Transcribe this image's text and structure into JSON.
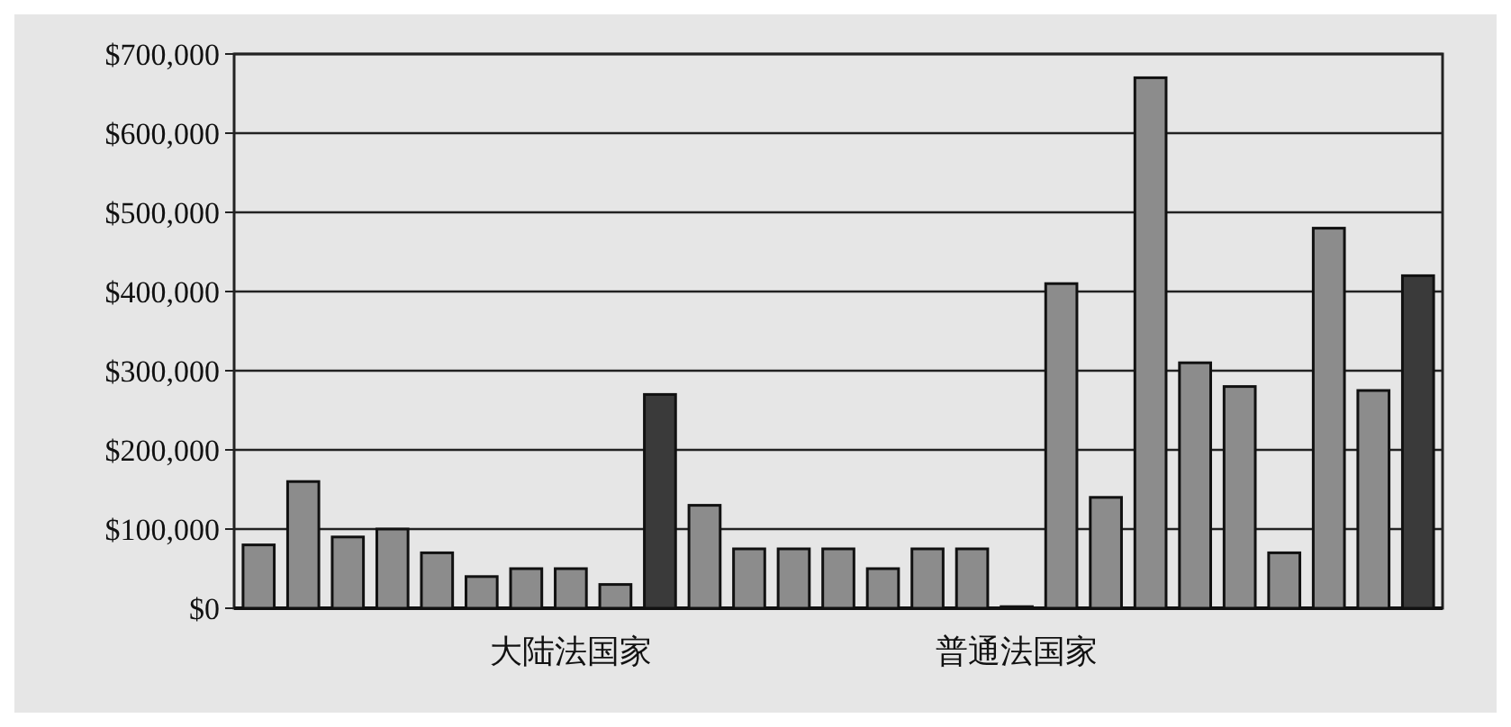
{
  "chart_data": {
    "type": "bar",
    "categories": [
      null,
      null,
      null,
      null,
      null,
      null,
      null,
      "大陆法国家",
      null,
      null,
      null,
      null,
      null,
      null,
      null,
      null,
      null,
      "普通法国家",
      null,
      null,
      null,
      null,
      null,
      null,
      null,
      null,
      null
    ],
    "values": [
      80000,
      160000,
      90000,
      100000,
      70000,
      40000,
      50000,
      50000,
      30000,
      270000,
      130000,
      75000,
      75000,
      75000,
      50000,
      75000,
      75000,
      2000,
      410000,
      140000,
      670000,
      310000,
      280000,
      70000,
      480000,
      275000,
      420000
    ],
    "colors": [
      "#8c8c8c",
      "#8c8c8c",
      "#8c8c8c",
      "#8c8c8c",
      "#8c8c8c",
      "#8c8c8c",
      "#8c8c8c",
      "#8c8c8c",
      "#8c8c8c",
      "#3a3a3a",
      "#8c8c8c",
      "#8c8c8c",
      "#8c8c8c",
      "#8c8c8c",
      "#8c8c8c",
      "#8c8c8c",
      "#8c8c8c",
      "#8c8c8c",
      "#8c8c8c",
      "#8c8c8c",
      "#8c8c8c",
      "#8c8c8c",
      "#8c8c8c",
      "#8c8c8c",
      "#8c8c8c",
      "#8c8c8c",
      "#3a3a3a"
    ],
    "ylim": [
      0,
      700000
    ],
    "yticks": [
      {
        "value": 0,
        "label": "$0"
      },
      {
        "value": 100000,
        "label": "$100,000"
      },
      {
        "value": 200000,
        "label": "$200,000"
      },
      {
        "value": 300000,
        "label": "$300,000"
      },
      {
        "value": 400000,
        "label": "$400,000"
      },
      {
        "value": 500000,
        "label": "$500,000"
      },
      {
        "value": 600000,
        "label": "$600,000"
      },
      {
        "value": 700000,
        "label": "$700,000"
      }
    ],
    "grid": "y"
  }
}
